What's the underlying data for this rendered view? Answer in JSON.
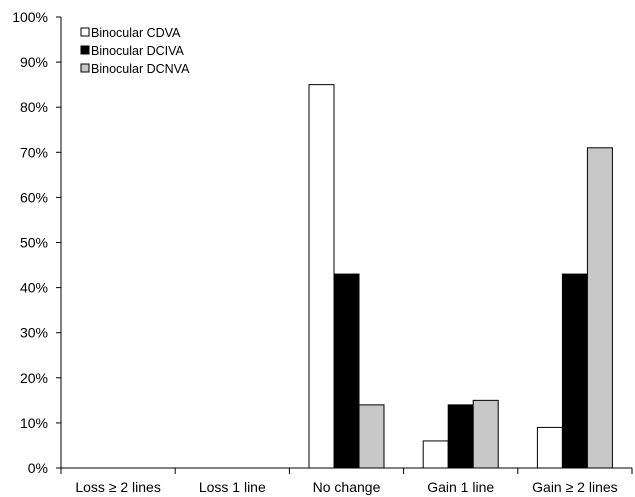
{
  "chart_data": {
    "type": "bar",
    "categories": [
      "Loss ≥ 2 lines",
      "Loss 1 line",
      "No change",
      "Gain 1 line",
      "Gain ≥ 2 lines"
    ],
    "series": [
      {
        "name": "Binocular CDVA",
        "color": "#ffffff",
        "values": [
          0,
          0,
          85,
          6,
          9
        ]
      },
      {
        "name": "Binocular DCIVA",
        "color": "#000000",
        "values": [
          0,
          0,
          43,
          14,
          43
        ]
      },
      {
        "name": "Binocular DCNVA",
        "color": "#c8c8c8",
        "values": [
          0,
          0,
          14,
          15,
          71
        ]
      }
    ],
    "yticks": [
      "0%",
      "10%",
      "20%",
      "30%",
      "40%",
      "50%",
      "60%",
      "70%",
      "80%",
      "90%",
      "100%"
    ],
    "ylim": [
      0,
      100
    ],
    "title": "",
    "xlabel": "",
    "ylabel": "",
    "grid": false,
    "legend_position": "top-left"
  }
}
